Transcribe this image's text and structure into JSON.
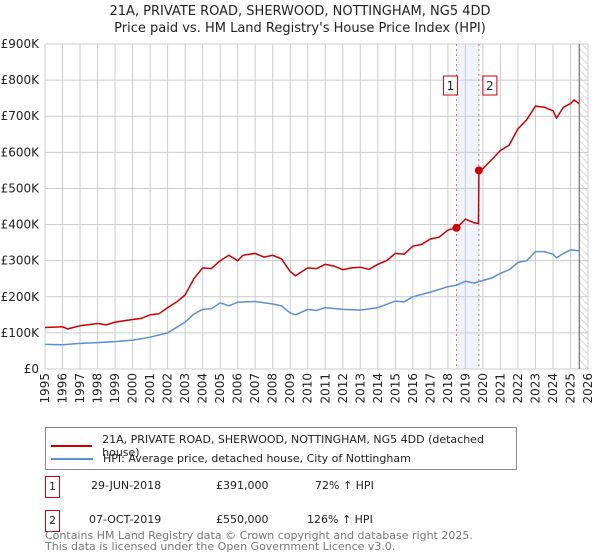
{
  "chart_data": {
    "type": "line",
    "title": "21A, PRIVATE ROAD, SHERWOOD, NOTTINGHAM, NG5 4DD",
    "subtitle": "Price paid vs. HM Land Registry's House Price Index (HPI)",
    "xlim": [
      1995,
      2026
    ],
    "ylim": [
      0,
      900000
    ],
    "x_ticks": [
      "1995",
      "1996",
      "1997",
      "1998",
      "1999",
      "2000",
      "2001",
      "2002",
      "2003",
      "2004",
      "2005",
      "2006",
      "2007",
      "2008",
      "2009",
      "2010",
      "2011",
      "2012",
      "2013",
      "2014",
      "2015",
      "2016",
      "2017",
      "2018",
      "2019",
      "2020",
      "2021",
      "2022",
      "2023",
      "2024",
      "2025",
      "2026"
    ],
    "y_ticks": [
      {
        "v": 0,
        "label": "£0"
      },
      {
        "v": 100000,
        "label": "£100K"
      },
      {
        "v": 200000,
        "label": "£200K"
      },
      {
        "v": 300000,
        "label": "£300K"
      },
      {
        "v": 400000,
        "label": "£400K"
      },
      {
        "v": 500000,
        "label": "£500K"
      },
      {
        "v": 600000,
        "label": "£600K"
      },
      {
        "v": 700000,
        "label": "£700K"
      },
      {
        "v": 800000,
        "label": "£800K"
      },
      {
        "v": 900000,
        "label": "£900K"
      }
    ],
    "grid": true,
    "shaded_range": [
      2018.49,
      2019.77
    ],
    "forecast_hatch_from": 2025.5,
    "series": [
      {
        "name": "21A, PRIVATE ROAD, SHERWOOD, NOTTINGHAM, NG5 4DD (detached house)",
        "color": "#cc0000",
        "x": [
          1995,
          1996,
          1996.3,
          1997,
          1998,
          1998.5,
          1999,
          2000,
          2000.5,
          2001,
          2001.5,
          2002,
          2002.5,
          2003,
          2003.5,
          2004,
          2004.5,
          2005,
          2005.5,
          2006,
          2006.3,
          2007,
          2007.5,
          2008,
          2008.5,
          2009,
          2009.3,
          2010,
          2010.5,
          2011,
          2011.5,
          2012,
          2012.5,
          2013,
          2013.5,
          2014,
          2014.5,
          2015,
          2015.5,
          2016,
          2016.5,
          2017,
          2017.5,
          2018,
          2018.49,
          2018.8,
          2019,
          2019.5,
          2019.75,
          2019.77,
          2020,
          2020.5,
          2021,
          2021.5,
          2022,
          2022.5,
          2023,
          2023.5,
          2024,
          2024.2,
          2024.6,
          2025,
          2025.2,
          2025.5
        ],
        "values": [
          115000,
          117000,
          111000,
          120000,
          126000,
          122000,
          130000,
          137000,
          140000,
          150000,
          153000,
          170000,
          185000,
          205000,
          250000,
          280000,
          278000,
          300000,
          315000,
          300000,
          315000,
          320000,
          310000,
          315000,
          305000,
          270000,
          258000,
          280000,
          278000,
          290000,
          285000,
          275000,
          280000,
          282000,
          276000,
          290000,
          300000,
          320000,
          318000,
          340000,
          345000,
          360000,
          365000,
          385000,
          391000,
          405000,
          415000,
          405000,
          403000,
          550000,
          555000,
          580000,
          605000,
          620000,
          665000,
          690000,
          728000,
          725000,
          715000,
          695000,
          725000,
          735000,
          745000,
          735000
        ]
      },
      {
        "name": "HPI: Average price, detached house, City of Nottingham",
        "color": "#5b8fd6",
        "x": [
          1995,
          1996,
          1997,
          1998,
          1999,
          2000,
          2001,
          2002,
          2003,
          2003.5,
          2004,
          2004.5,
          2005,
          2005.5,
          2006,
          2007,
          2008,
          2008.5,
          2009,
          2009.3,
          2010,
          2010.5,
          2011,
          2012,
          2013,
          2014,
          2015,
          2015.5,
          2016,
          2017,
          2018,
          2018.5,
          2019,
          2019.5,
          2020,
          2020.5,
          2021,
          2021.5,
          2022,
          2022.5,
          2023,
          2023.5,
          2024,
          2024.2,
          2024.6,
          2025,
          2025.5
        ],
        "values": [
          68000,
          67000,
          71000,
          73000,
          76000,
          80000,
          88000,
          100000,
          130000,
          152000,
          165000,
          167000,
          183000,
          175000,
          185000,
          187000,
          180000,
          175000,
          155000,
          150000,
          165000,
          162000,
          170000,
          165000,
          163000,
          170000,
          188000,
          186000,
          200000,
          213000,
          228000,
          232000,
          243000,
          238000,
          245000,
          252000,
          265000,
          275000,
          295000,
          300000,
          325000,
          325000,
          318000,
          308000,
          320000,
          330000,
          327000
        ]
      }
    ],
    "annotations": [
      {
        "id": "1",
        "x": 2018.49,
        "y": 391000
      },
      {
        "id": "2",
        "x": 2019.77,
        "y": 550000
      }
    ]
  },
  "legend": [
    {
      "label": "21A, PRIVATE ROAD, SHERWOOD, NOTTINGHAM, NG5 4DD (detached house)",
      "color": "#cc0000"
    },
    {
      "label": "HPI: Average price, detached house, City of Nottingham",
      "color": "#5b8fd6"
    }
  ],
  "transactions": [
    {
      "id": "1",
      "date": "29-JUN-2018",
      "price": "£391,000",
      "hpi": "72% ↑ HPI"
    },
    {
      "id": "2",
      "date": "07-OCT-2019",
      "price": "£550,000",
      "hpi": "126% ↑ HPI"
    }
  ],
  "footer": {
    "line1": "Contains HM Land Registry data © Crown copyright and database right 2025.",
    "line2": "This data is licensed under the Open Government Licence v3.0."
  }
}
